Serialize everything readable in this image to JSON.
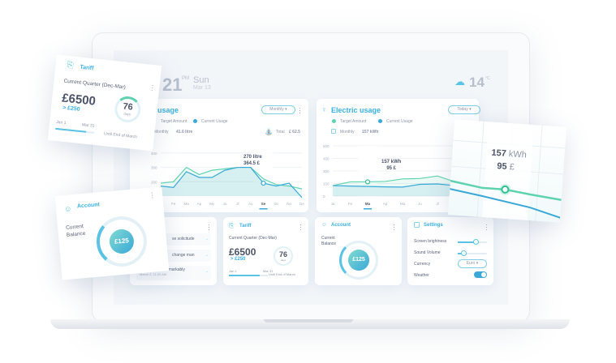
{
  "header": {
    "time": "21",
    "ampm": "PM",
    "day": "Sun",
    "date": "Mar 13",
    "temperature": "14",
    "temp_unit": "°C",
    "weather_icon": "cloud-snow-icon"
  },
  "water": {
    "title": "usage",
    "dropdown": "Monthly",
    "legend_target": "Target Amount",
    "legend_current": "Current Usage",
    "period": "Monthly",
    "amount": "41.6 litre",
    "total_label": "Total",
    "total_value": "£ 62.5",
    "tooltip_line1": "270 litre",
    "tooltip_line2": "364.5 £"
  },
  "electric": {
    "title": "Electric usage",
    "dropdown": "Today",
    "legend_target": "Target Amount",
    "legend_current": "Current Usage",
    "period": "Monthly",
    "amount": "157 kWh",
    "tooltip_line1": "157 kWh",
    "tooltip_line2": "95 £"
  },
  "messages": {
    "items": [
      {
        "text": "se solicitude"
      },
      {
        "text": "change man"
      },
      {
        "text": "ssugence ten remarkably",
        "time": "March 2, 11:20 AM"
      }
    ]
  },
  "tariff": {
    "title": "Tariff",
    "subtitle": "Current Quarter (Dec-Mar)",
    "amount": "£6500",
    "delta": "> £250",
    "start": "Jan 1",
    "end": "Mar 31",
    "days": "76",
    "days_label": "days",
    "days_caption": "Until End of March",
    "progress": 0.8,
    "days_fraction": 0.15
  },
  "account": {
    "title": "Account",
    "label_line1": "Current",
    "label_line2": "Balance",
    "balance": "£125",
    "gauge_fraction": 0.45
  },
  "settings": {
    "title": "Settings",
    "brightness_label": "Screen brightness",
    "brightness": 0.6,
    "volume_label": "Sound Volume",
    "volume": 0.2,
    "currency_label": "Currency",
    "currency": "Euro",
    "weather_label": "Weather",
    "weather_on": true
  },
  "zoom_card": {
    "line1_value": "157",
    "line1_unit": "kWh",
    "line2_value": "95",
    "line2_unit": "£"
  },
  "colors": {
    "accent": "#3bb0e3",
    "target": "#5fd3b0",
    "current": "#3aa8d8"
  },
  "chart_data": [
    {
      "type": "line",
      "categories": [
        "Ja",
        "Fe",
        "Ma",
        "Ap",
        "My",
        "Ju",
        "Jl",
        "Au",
        "Se",
        "Oc",
        "No",
        "De"
      ],
      "yticks": [
        200,
        300,
        400
      ],
      "ylim": [
        100,
        450
      ],
      "highlight": "Se",
      "series": [
        {
          "name": "Target Amount",
          "values": [
            190,
            200,
            300,
            250,
            280,
            290,
            300,
            300,
            220,
            180,
            170,
            150
          ]
        },
        {
          "name": "Current Usage",
          "values": [
            170,
            160,
            270,
            230,
            230,
            280,
            300,
            300,
            190,
            170,
            190,
            90
          ]
        }
      ]
    },
    {
      "type": "line",
      "categories": [
        "Ja",
        "Fe",
        "Ma",
        "Ap",
        "Ma",
        "Ju",
        "Jl",
        "Au",
        "Se"
      ],
      "yticks": [
        0,
        150,
        300,
        450,
        600
      ],
      "ylim": [
        0,
        600
      ],
      "highlight": "Ma",
      "series": [
        {
          "name": "Target Amount",
          "values": [
            125,
            170,
            170,
            175,
            205,
            210,
            240,
            170,
            230
          ]
        },
        {
          "name": "Current Usage",
          "values": [
            125,
            120,
            115,
            110,
            108,
            140,
            145,
            125,
            145
          ]
        }
      ]
    }
  ]
}
